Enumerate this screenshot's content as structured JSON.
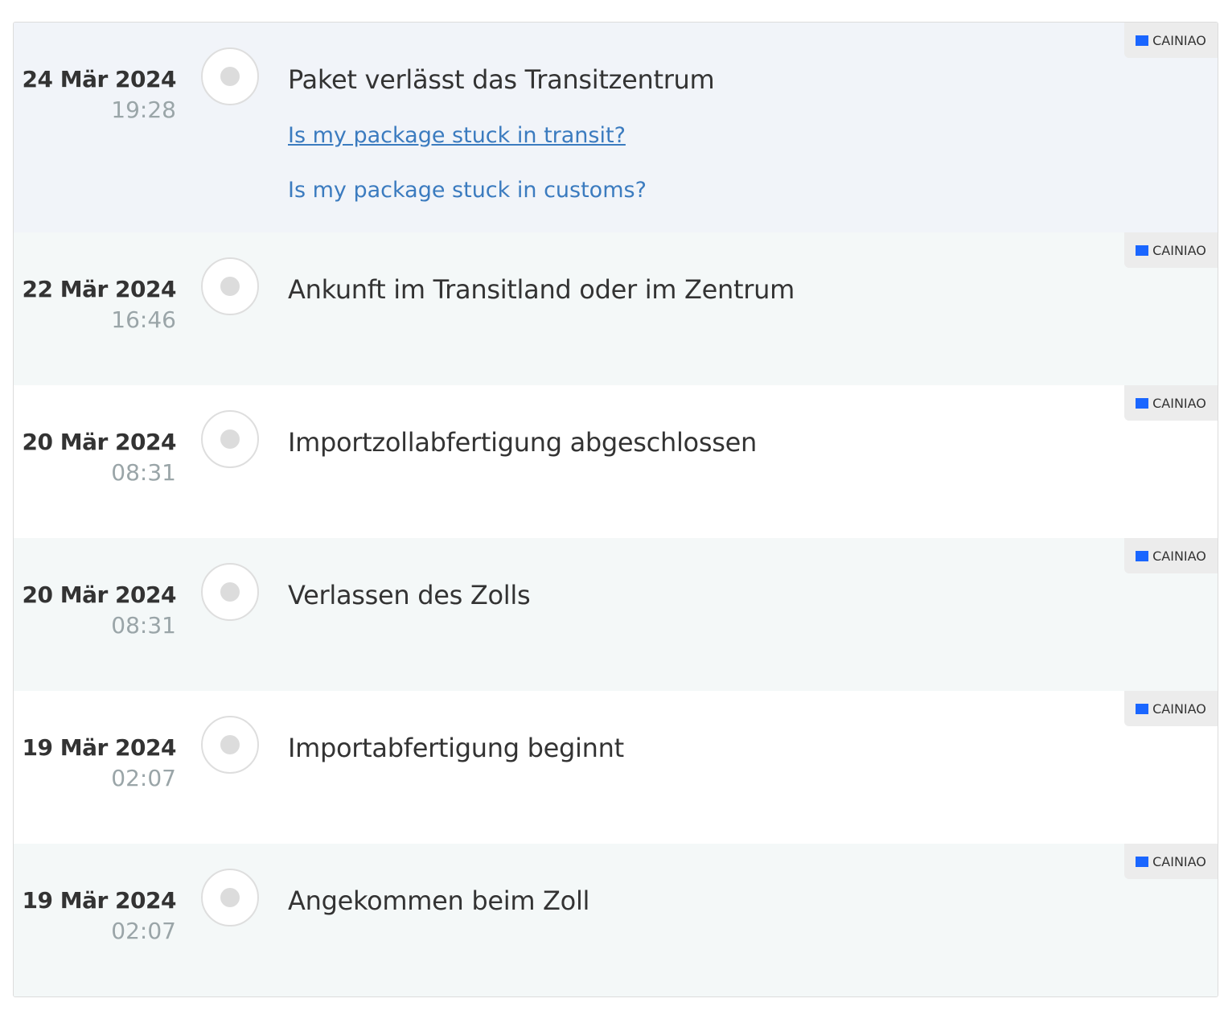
{
  "carrier": {
    "name": "CAINIAO",
    "logo_color": "#1a66ff",
    "icon": "cainiao-logo-icon"
  },
  "events": [
    {
      "date": "24 Mär 2024",
      "time": "19:28",
      "title": "Paket verlässt das Transitzentrum",
      "links": [
        "Is my package stuck in transit?",
        "Is my package stuck in customs?"
      ],
      "carrier": "CAINIAO"
    },
    {
      "date": "22 Mär 2024",
      "time": "16:46",
      "title": "Ankunft im Transitland oder im Zentrum",
      "carrier": "CAINIAO"
    },
    {
      "date": "20 Mär 2024",
      "time": "08:31",
      "title": "Importzollabfertigung abgeschlossen",
      "carrier": "CAINIAO"
    },
    {
      "date": "20 Mär 2024",
      "time": "08:31",
      "title": "Verlassen des Zolls",
      "carrier": "CAINIAO"
    },
    {
      "date": "19 Mär 2024",
      "time": "02:07",
      "title": "Importabfertigung beginnt",
      "carrier": "CAINIAO"
    },
    {
      "date": "19 Mär 2024",
      "time": "02:07",
      "title": "Angekommen beim Zoll",
      "carrier": "CAINIAO"
    }
  ],
  "colors": {
    "link": "#3b7bbf",
    "first_row_bg": "#f1f4f9",
    "alt_row_bg": "#f4f8f8"
  }
}
